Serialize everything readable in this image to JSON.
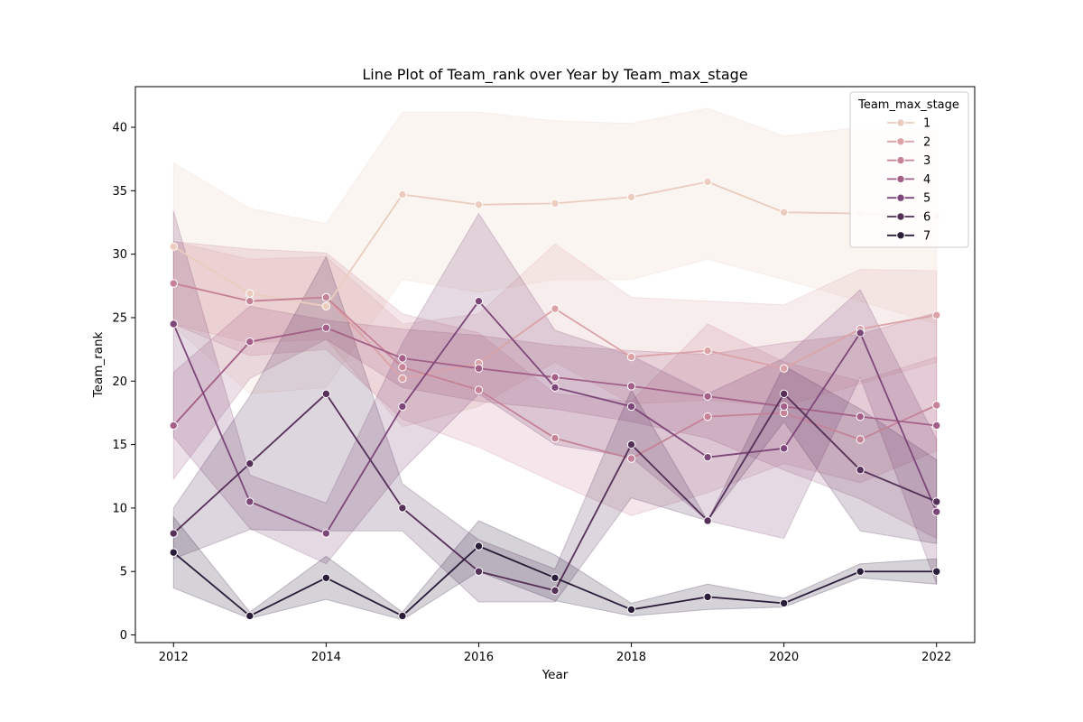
{
  "chart_data": {
    "type": "line",
    "title": "Line Plot of Team_rank over Year by Team_max_stage",
    "xlabel": "Year",
    "ylabel": "Team_rank",
    "xlim": [
      2011.5,
      2022.5
    ],
    "ylim": [
      -0.6,
      43.2
    ],
    "x_ticks": [
      2012,
      2014,
      2016,
      2018,
      2020,
      2022
    ],
    "y_ticks": [
      0,
      5,
      10,
      15,
      20,
      25,
      30,
      35,
      40
    ],
    "grid": false,
    "legend": {
      "title": "Team_max_stage",
      "placement": "top-right"
    },
    "x": [
      2012,
      2013,
      2014,
      2015,
      2016,
      2017,
      2018,
      2019,
      2020,
      2021,
      2022
    ],
    "series": [
      {
        "name": "1",
        "color": "#ebccbe",
        "values": [
          30.6,
          26.9,
          25.9,
          34.7,
          33.9,
          34.0,
          34.5,
          35.7,
          33.3,
          33.2,
          33.0
        ],
        "lower": [
          24.3,
          19.0,
          19.5,
          28.0,
          27.0,
          28.0,
          28.0,
          29.6,
          28.0,
          26.3,
          24.5
        ],
        "upper": [
          37.2,
          33.6,
          32.4,
          41.2,
          41.2,
          40.5,
          40.3,
          41.5,
          39.3,
          40.0,
          39.9
        ]
      },
      {
        "name": "2",
        "color": "#dba3a7",
        "values": [
          27.7,
          26.3,
          26.6,
          20.2,
          21.4,
          25.7,
          21.9,
          22.4,
          21.0,
          24.1,
          25.2
        ],
        "lower": [
          24.5,
          23.0,
          23.3,
          16.4,
          18.0,
          21.5,
          18.2,
          18.5,
          18.0,
          19.8,
          21.5
        ],
        "upper": [
          31.0,
          29.6,
          29.8,
          24.5,
          25.3,
          30.8,
          26.6,
          26.3,
          26.0,
          28.8,
          28.7
        ]
      },
      {
        "name": "3",
        "color": "#c68296",
        "values": [
          27.7,
          26.3,
          26.6,
          21.1,
          19.3,
          15.5,
          13.9,
          17.2,
          17.5,
          15.4,
          18.1
        ],
        "lower": [
          24.5,
          22.0,
          22.5,
          17.0,
          14.8,
          12.0,
          9.4,
          11.2,
          13.5,
          12.0,
          14.5
        ],
        "upper": [
          31.0,
          30.4,
          30.1,
          25.3,
          23.8,
          19.0,
          18.4,
          24.5,
          21.5,
          20.0,
          21.9
        ]
      },
      {
        "name": "4",
        "color": "#a45f88",
        "values": [
          16.5,
          23.1,
          24.2,
          21.8,
          21.0,
          20.3,
          19.6,
          18.8,
          18.0,
          17.2,
          16.5
        ],
        "lower": [
          12.3,
          20.2,
          23.3,
          19.5,
          18.4,
          17.8,
          16.8,
          15.5,
          13.0,
          10.7,
          7.6
        ],
        "upper": [
          20.7,
          25.9,
          24.8,
          24.1,
          23.6,
          22.8,
          22.4,
          22.1,
          23.0,
          23.7,
          25.4
        ]
      },
      {
        "name": "5",
        "color": "#7e4779",
        "values": [
          24.5,
          10.5,
          8.0,
          18.0,
          26.3,
          19.5,
          18.0,
          14.0,
          14.7,
          23.8,
          9.7
        ],
        "lower": [
          15.6,
          8.4,
          5.6,
          13.0,
          19.0,
          15.0,
          14.0,
          9.0,
          7.6,
          20.3,
          4.0
        ],
        "upper": [
          33.4,
          12.6,
          10.4,
          23.0,
          33.2,
          24.0,
          22.0,
          19.0,
          21.8,
          27.2,
          15.4
        ]
      },
      {
        "name": "6",
        "color": "#553058",
        "values": [
          8.0,
          13.5,
          19.0,
          10.0,
          5.0,
          3.5,
          15.0,
          9.0,
          19.0,
          13.0,
          10.5
        ],
        "lower": [
          6.0,
          8.3,
          8.2,
          8.2,
          2.6,
          2.6,
          10.8,
          9.0,
          16.8,
          8.2,
          7.2
        ],
        "upper": [
          10.0,
          18.8,
          29.8,
          11.9,
          7.5,
          5.2,
          19.3,
          9.0,
          21.2,
          17.8,
          13.8
        ]
      },
      {
        "name": "7",
        "color": "#2b1d3a",
        "values": [
          6.5,
          1.5,
          4.5,
          1.5,
          7.0,
          4.5,
          2.0,
          3.0,
          2.5,
          5.0,
          5.0
        ],
        "lower": [
          3.7,
          1.3,
          2.8,
          1.2,
          5.0,
          2.7,
          1.5,
          2.0,
          2.2,
          4.5,
          4.0
        ],
        "upper": [
          9.3,
          1.8,
          6.2,
          1.8,
          9.0,
          6.3,
          2.5,
          4.0,
          2.9,
          5.6,
          6.0
        ]
      }
    ]
  }
}
